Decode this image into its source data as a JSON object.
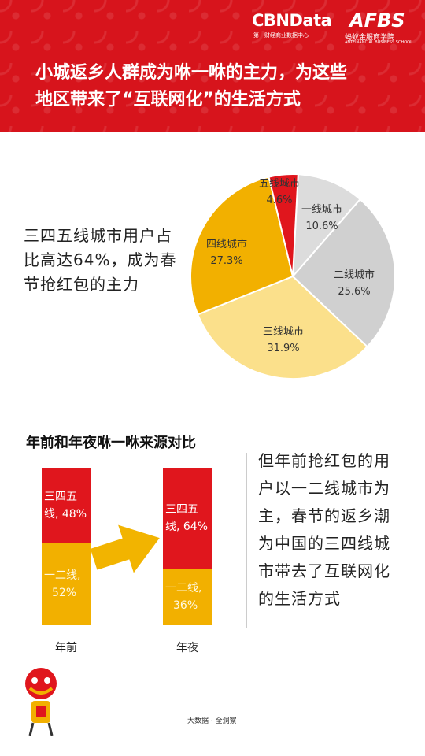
{
  "header": {
    "logo_primary": "CBNData",
    "logo_primary_sub": "第一财经商业数据中心",
    "logo_secondary": "AFBS",
    "logo_secondary_sub": "蚂蚁金服商学院",
    "logo_secondary_sub2": "ANTFINANCIAL BUSINESS SCHOOL",
    "title_line1": "小城返乡人群成为咻一咻的主力，为这些",
    "title_line2": "地区带来了“互联网化”的生活方式"
  },
  "section1": {
    "text": "三四五线城市用户占比高达64%，成为春节抢红包的主力"
  },
  "section2": {
    "text": "但年前抢红包的用户以一二线城市为主，春节的返乡潮为中国的三四线城市带去了互联网化的生活方式"
  },
  "footer": {
    "source": "大数据 · 全洞察"
  },
  "colors": {
    "header_red": "#d7141c",
    "red": "#e0161d",
    "orange": "#f2b000",
    "light_yellow": "#fbe08b",
    "gray": "#d4d4d4",
    "arrow": "#f2b400"
  },
  "chart_data": [
    {
      "type": "pie",
      "title": "",
      "slices": [
        {
          "label": "一线城市",
          "value": 10.6,
          "display": "10.6%",
          "color": "#dcdcdc"
        },
        {
          "label": "二线城市",
          "value": 25.6,
          "display": "25.6%",
          "color": "#d0d0d0"
        },
        {
          "label": "三线城市",
          "value": 31.9,
          "display": "31.9%",
          "color": "#fbe08b"
        },
        {
          "label": "四线城市",
          "value": 27.3,
          "display": "27.3%",
          "color": "#f2b000"
        },
        {
          "label": "五线城市",
          "value": 4.6,
          "display": "4.6%",
          "color": "#e0161d"
        }
      ]
    },
    {
      "type": "bar",
      "stacked": true,
      "title": "年前和年夜咻一咻来源对比",
      "categories": [
        "年前",
        "年夜"
      ],
      "series": [
        {
          "name": "一二线",
          "values": [
            52,
            36
          ],
          "color": "#f2b000"
        },
        {
          "name": "三四五线",
          "values": [
            48,
            64
          ],
          "color": "#e0161d"
        }
      ],
      "ylim": [
        0,
        100
      ]
    }
  ]
}
